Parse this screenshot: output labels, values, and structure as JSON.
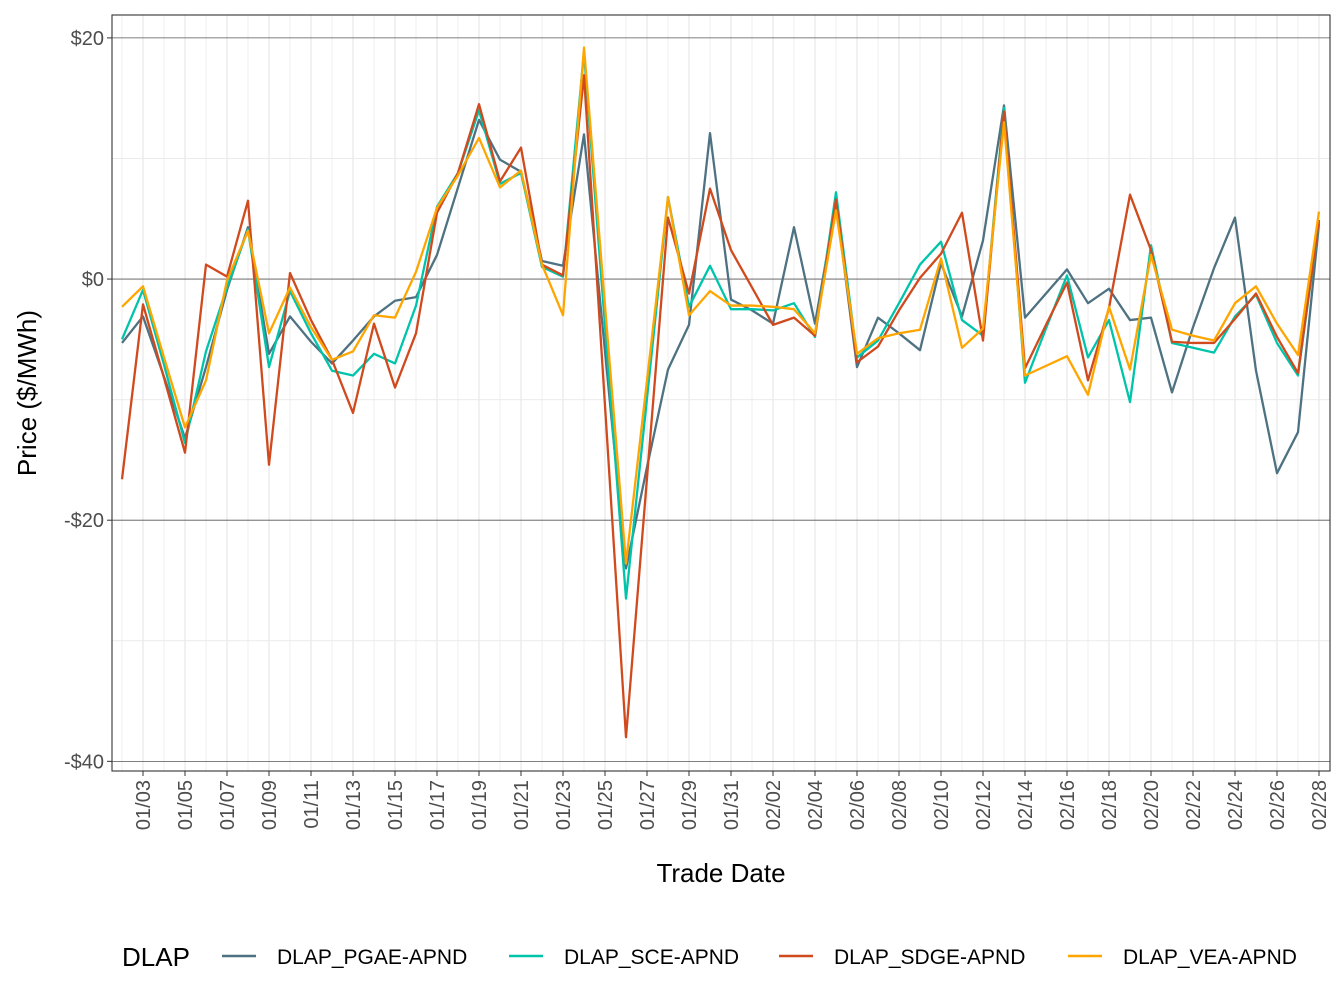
{
  "chart_data": {
    "type": "line",
    "xlabel": "Trade Date",
    "ylabel": "Price ($/MWh)",
    "legend_title": "DLAP",
    "legend_position": "bottom",
    "ylim": [
      -40.8,
      21.9
    ],
    "y_ticks": [
      20,
      0,
      -20,
      -40
    ],
    "y_tick_labels": [
      "$20",
      "$0",
      "-$20",
      "-$40"
    ],
    "grid": true,
    "x": [
      "01/02",
      "01/03",
      "01/04",
      "01/05",
      "01/06",
      "01/07",
      "01/08",
      "01/09",
      "01/10",
      "01/11",
      "01/12",
      "01/13",
      "01/14",
      "01/15",
      "01/16",
      "01/17",
      "01/18",
      "01/19",
      "01/20",
      "01/21",
      "01/22",
      "01/23",
      "01/24",
      "01/25",
      "01/26",
      "01/27",
      "01/28",
      "01/29",
      "01/30",
      "01/31",
      "02/01",
      "02/02",
      "02/03",
      "02/04",
      "02/05",
      "02/06",
      "02/07",
      "02/08",
      "02/09",
      "02/10",
      "02/11",
      "02/12",
      "02/13",
      "02/14",
      "02/15",
      "02/16",
      "02/17",
      "02/18",
      "02/19",
      "02/20",
      "02/21",
      "02/22",
      "02/23",
      "02/24",
      "02/25",
      "02/26",
      "02/27",
      "02/28"
    ],
    "x_tick_labels": [
      "01/03",
      "01/05",
      "01/07",
      "01/09",
      "01/11",
      "01/13",
      "01/15",
      "01/17",
      "01/19",
      "01/21",
      "01/23",
      "01/25",
      "01/27",
      "01/29",
      "01/31",
      "02/02",
      "02/04",
      "02/06",
      "02/08",
      "02/10",
      "02/12",
      "02/14",
      "02/16",
      "02/18",
      "02/20",
      "02/22",
      "02/24",
      "02/26",
      "02/28"
    ],
    "series": [
      {
        "name": "DLAP_PGAE-APND",
        "color": "#4E7282",
        "values": [
          -5.3,
          -3.1,
          -8.1,
          -13.2,
          -7.3,
          -0.9,
          4.3,
          -6.2,
          -3.1,
          -5.2,
          -7.0,
          -5.1,
          -3.1,
          -1.8,
          -1.5,
          2.0,
          7.6,
          13.2,
          9.9,
          8.9,
          1.5,
          1.1,
          12.0,
          -6.0,
          -24.0,
          -15.6,
          -7.5,
          -3.8,
          12.1,
          -1.7,
          -2.6,
          -3.7,
          4.3,
          -3.7,
          6.3,
          -7.3,
          -3.2,
          -4.5,
          -5.9,
          1.3,
          -3.1,
          3.2,
          14.4,
          -3.2,
          -1.2,
          0.8,
          -2.0,
          -0.8,
          -3.4,
          -3.2,
          -9.4,
          -4.0,
          0.9,
          5.1,
          -7.6,
          -16.1,
          -12.7,
          4.6
        ]
      },
      {
        "name": "DLAP_SCE-APND",
        "color": "#00C4AA",
        "values": [
          -5.0,
          -0.9,
          -7.1,
          -13.6,
          -6.0,
          -0.7,
          4.1,
          -7.3,
          -1.0,
          -4.5,
          -7.6,
          -8.0,
          -6.2,
          -7.0,
          -2.2,
          6.0,
          8.8,
          14.0,
          7.9,
          8.8,
          1.0,
          0.2,
          18.8,
          -3.9,
          -26.5,
          -9.9,
          6.8,
          -2.3,
          1.1,
          -2.5,
          -2.5,
          -2.6,
          -2.0,
          -4.8,
          7.2,
          -6.5,
          -5.1,
          -2.0,
          1.2,
          3.1,
          -3.4,
          -4.7,
          14.2,
          -8.6,
          -4.1,
          0.3,
          -6.5,
          -3.4,
          -10.2,
          2.8,
          -5.3,
          -5.7,
          -6.1,
          -3.1,
          -1.3,
          -5.3,
          -8.0,
          4.8
        ]
      },
      {
        "name": "DLAP_SDGE-APND",
        "color": "#D04A1E",
        "values": [
          -16.6,
          -2.1,
          -8.2,
          -14.4,
          1.2,
          0.2,
          6.5,
          -15.4,
          0.5,
          -3.4,
          -6.7,
          -11.1,
          -3.7,
          -9.0,
          -4.5,
          5.5,
          8.8,
          14.5,
          8.1,
          10.9,
          1.2,
          0.3,
          16.9,
          -10.5,
          -38.0,
          -16.5,
          5.1,
          -1.2,
          7.5,
          2.4,
          -0.7,
          -3.8,
          -3.2,
          -4.7,
          6.6,
          -6.9,
          -5.6,
          -2.6,
          0.1,
          2.1,
          5.5,
          -5.1,
          13.9,
          -7.4,
          -3.8,
          -0.3,
          -8.4,
          -2.4,
          7.0,
          2.4,
          -5.2,
          -5.3,
          -5.3,
          -3.3,
          -1.2,
          -4.8,
          -7.8,
          4.9
        ]
      },
      {
        "name": "DLAP_VEA-APND",
        "color": "#FFA500",
        "values": [
          -2.3,
          -0.6,
          -6.5,
          -12.3,
          -8.4,
          -0.1,
          4.0,
          -4.5,
          -0.7,
          -4.0,
          -6.7,
          -6.0,
          -3.0,
          -3.2,
          0.6,
          5.9,
          8.6,
          11.7,
          7.6,
          9.0,
          1.2,
          -3.0,
          19.2,
          -2.2,
          -23.6,
          -8.4,
          6.8,
          -3.0,
          -1.0,
          -2.2,
          -2.2,
          -2.3,
          -2.5,
          -4.5,
          5.7,
          -6.2,
          -4.9,
          -4.5,
          -4.2,
          1.7,
          -5.7,
          -4.1,
          13.0,
          -8.0,
          -7.2,
          -6.4,
          -9.6,
          -2.3,
          -7.5,
          2.0,
          -4.2,
          -4.7,
          -5.1,
          -2.0,
          -0.6,
          -3.7,
          -6.3,
          5.6
        ]
      }
    ]
  }
}
